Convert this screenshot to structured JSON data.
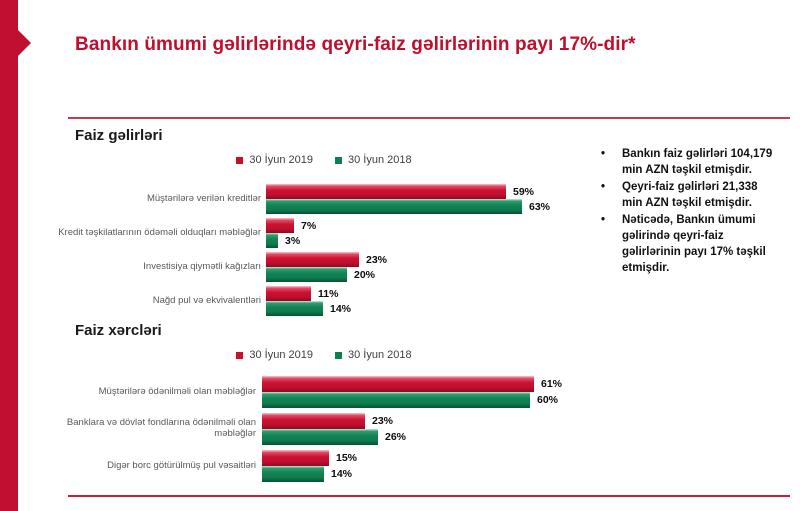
{
  "slide": {
    "title": "Bankın ümumi gəlirlərində qeyri-faiz gəlirlərinin payı 17%-dir*"
  },
  "colors": {
    "accent_red": "#C01030",
    "bar_red": "#C8102E",
    "bar_green": "#0E8050",
    "title_red": "#C00E2C",
    "divider_red": "#C43A4D",
    "category_label_gray": "#595959"
  },
  "chart_data": [
    {
      "type": "bar",
      "orientation": "horizontal",
      "title": "Faiz gəlirləri",
      "legend_position": "top-center",
      "value_suffix": "%",
      "xlim": [
        0,
        63
      ],
      "categories": [
        "Müştərilərə verilən kreditlər",
        "Kredit təşkilatlarının ödəməli olduqları məbləğlər",
        "Investisiya qiymətli kağızları",
        "Nağd pul və ekvivalentləri"
      ],
      "series": [
        {
          "name": "30 İyun 2019",
          "color": "#C8102E",
          "values": [
            59,
            7,
            23,
            11
          ]
        },
        {
          "name": "30 İyun 2018",
          "color": "#0E8050",
          "values": [
            63,
            3,
            20,
            14
          ]
        }
      ]
    },
    {
      "type": "bar",
      "orientation": "horizontal",
      "title": "Faiz xərcləri",
      "legend_position": "top-center",
      "value_suffix": "%",
      "xlim": [
        0,
        61
      ],
      "categories": [
        "Müştərilərə ödənilməli olan məbləğlər",
        "Banklara və dövlət fondlarına ödənilməli olan məbləğlər",
        "Digər borc götürülmüş pul vəsaitləri"
      ],
      "series": [
        {
          "name": "30 İyun 2019",
          "color": "#C8102E",
          "values": [
            61,
            23,
            15
          ]
        },
        {
          "name": "30 İyun 2018",
          "color": "#0E8050",
          "values": [
            60,
            26,
            14
          ]
        }
      ]
    }
  ],
  "notes": {
    "bullet": "•",
    "items": [
      "Bankın faiz gəlirləri 104,179 min AZN təşkil etmişdir.",
      "Qeyri-faiz gəlirləri  21,338 min AZN təşkil etmişdir.",
      "Nəticədə, Bankın ümumi gəlirində qeyri-faiz gəlirlərinin payı 17% təşkil etmişdir."
    ]
  }
}
